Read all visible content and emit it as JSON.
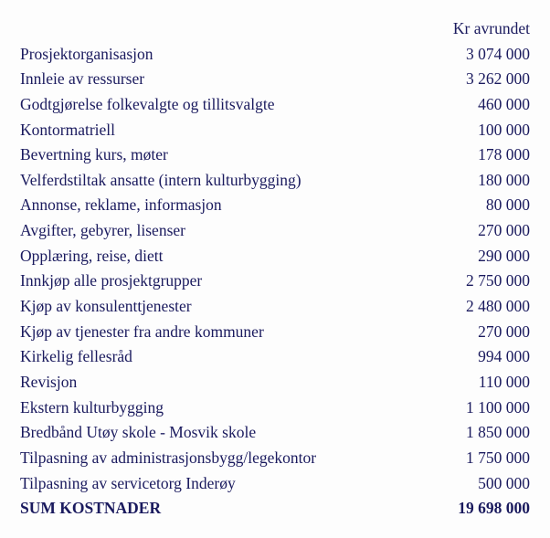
{
  "header": {
    "value_label": "Kr avrundet"
  },
  "rows": [
    {
      "label": "Prosjektorganisasjon",
      "value": "3 074 000"
    },
    {
      "label": "Innleie av ressurser",
      "value": "3 262 000"
    },
    {
      "label": "Godtgjørelse folkevalgte og tillitsvalgte",
      "value": "460 000"
    },
    {
      "label": "Kontormatriell",
      "value": "100 000"
    },
    {
      "label": "Bevertning kurs, møter",
      "value": "178 000"
    },
    {
      "label": "Velferdstiltak ansatte (intern kulturbygging)",
      "value": "180 000"
    },
    {
      "label": "Annonse, reklame, informasjon",
      "value": "80 000"
    },
    {
      "label": "Avgifter, gebyrer, lisenser",
      "value": "270 000"
    },
    {
      "label": "Opplæring, reise, diett",
      "value": "290 000"
    },
    {
      "label": "Innkjøp alle prosjektgrupper",
      "value": "2 750 000"
    },
    {
      "label": "Kjøp av konsulenttjenester",
      "value": "2 480 000"
    },
    {
      "label": "Kjøp av tjenester fra andre kommuner",
      "value": "270 000"
    },
    {
      "label": "Kirkelig fellesråd",
      "value": "994 000"
    },
    {
      "label": "Revisjon",
      "value": "110 000"
    },
    {
      "label": "Ekstern kulturbygging",
      "value": "1 100 000"
    },
    {
      "label": "Bredbånd Utøy skole - Mosvik skole",
      "value": "1 850 000"
    },
    {
      "label": "Tilpasning av administrasjonsbygg/legekontor",
      "value": "1 750 000"
    },
    {
      "label": "Tilpasning av servicetorg Inderøy",
      "value": "500 000"
    }
  ],
  "total": {
    "label": "SUM KOSTNADER",
    "value": "19 698 000"
  }
}
